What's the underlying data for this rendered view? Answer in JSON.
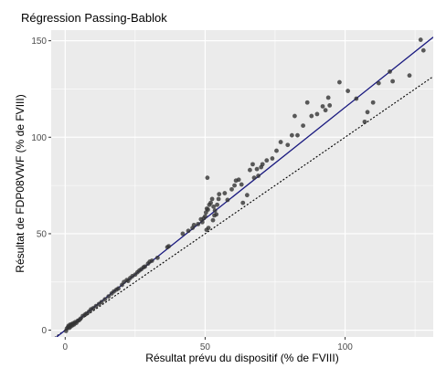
{
  "chart_data": {
    "type": "scatter",
    "title": "Régression Passing-Bablok",
    "xlabel": "Résultat prévu du dispositif (% de FVIII)",
    "ylabel": "Résultat de FDP08VWF (% de FVIII)",
    "xlim": [
      -5,
      131.5
    ],
    "ylim": [
      -3.5,
      155.5
    ],
    "x_ticks": [
      0,
      50,
      100
    ],
    "x_tick_labels": [
      "0",
      "50",
      "100"
    ],
    "y_ticks": [
      0,
      50,
      100,
      150
    ],
    "y_tick_labels": [
      "0",
      "50",
      "100",
      "150"
    ],
    "grid": true,
    "background": "#ebebeb",
    "grid_color": "#ffffff",
    "point_color": "#333333",
    "point_opacity": 0.8,
    "regression_line": {
      "slope": 1.155,
      "intercept": 0.0,
      "color": "#1a1a80",
      "style": "solid"
    },
    "identity_line": {
      "slope": 1.0,
      "intercept": 0.0,
      "color": "#000000",
      "style": "dotted"
    },
    "points": [
      [
        0.3,
        -0.4
      ],
      [
        0.6,
        0.9
      ],
      [
        1.0,
        1.5
      ],
      [
        1.2,
        2.3
      ],
      [
        1.5,
        1.2
      ],
      [
        1.8,
        2.9
      ],
      [
        2.0,
        2.0
      ],
      [
        2.3,
        3.1
      ],
      [
        2.6,
        2.5
      ],
      [
        2.9,
        3.6
      ],
      [
        3.2,
        3.0
      ],
      [
        3.6,
        4.2
      ],
      [
        4.0,
        3.8
      ],
      [
        4.5,
        4.9
      ],
      [
        5.0,
        5.2
      ],
      [
        5.5,
        6.0
      ],
      [
        6.3,
        7.4
      ],
      [
        7.1,
        8.1
      ],
      [
        7.6,
        8.6
      ],
      [
        8.5,
        9.6
      ],
      [
        9.2,
        10.8
      ],
      [
        10.0,
        11.4
      ],
      [
        11.0,
        12.5
      ],
      [
        12.1,
        13.6
      ],
      [
        13.0,
        14.6
      ],
      [
        14.2,
        16.0
      ],
      [
        15.5,
        17.5
      ],
      [
        16.6,
        19.0
      ],
      [
        17.4,
        20.1
      ],
      [
        18.3,
        21.0
      ],
      [
        19.0,
        21.6
      ],
      [
        20.3,
        23.5
      ],
      [
        21.0,
        25.0
      ],
      [
        22.0,
        26.0
      ],
      [
        22.5,
        25.5
      ],
      [
        23.2,
        27.0
      ],
      [
        24.0,
        28.0
      ],
      [
        25.0,
        28.8
      ],
      [
        25.8,
        30.0
      ],
      [
        26.5,
        30.9
      ],
      [
        27.2,
        31.6
      ],
      [
        28.0,
        32.6
      ],
      [
        28.5,
        33.0
      ],
      [
        29.6,
        34.5
      ],
      [
        30.2,
        35.5
      ],
      [
        31.0,
        36.0
      ],
      [
        33.0,
        37.5
      ],
      [
        36.5,
        43.0
      ],
      [
        37.0,
        43.5
      ],
      [
        42.0,
        50.0
      ],
      [
        44.0,
        51.5
      ],
      [
        45.5,
        53.0
      ],
      [
        46.0,
        54.5
      ],
      [
        47.5,
        55.0
      ],
      [
        48.5,
        57.5
      ],
      [
        49.0,
        56.0
      ],
      [
        49.5,
        58.0
      ],
      [
        50.0,
        59.0
      ],
      [
        50.3,
        61.0
      ],
      [
        50.6,
        63.0
      ],
      [
        51.0,
        62.5
      ],
      [
        51.5,
        65.0
      ],
      [
        52.0,
        66.0
      ],
      [
        52.5,
        68.0
      ],
      [
        53.0,
        64.0
      ],
      [
        53.5,
        62.0
      ],
      [
        54.0,
        60.0
      ],
      [
        54.3,
        65.0
      ],
      [
        54.8,
        68.0
      ],
      [
        50.5,
        52.0
      ],
      [
        50.8,
        79.0
      ],
      [
        51.2,
        53.0
      ],
      [
        52.8,
        57.0
      ],
      [
        53.3,
        59.5
      ],
      [
        55.0,
        70.5
      ],
      [
        57.0,
        71.0
      ],
      [
        58.0,
        67.5
      ],
      [
        59.5,
        73.0
      ],
      [
        60.5,
        75.0
      ],
      [
        61.0,
        77.5
      ],
      [
        62.0,
        78.0
      ],
      [
        63.0,
        75.5
      ],
      [
        63.5,
        66.0
      ],
      [
        65.0,
        70.0
      ],
      [
        66.0,
        83.0
      ],
      [
        67.0,
        86.0
      ],
      [
        67.5,
        79.0
      ],
      [
        68.5,
        83.5
      ],
      [
        69.0,
        80.0
      ],
      [
        70.0,
        84.5
      ],
      [
        70.5,
        86.0
      ],
      [
        72.0,
        88.0
      ],
      [
        74.0,
        89.0
      ],
      [
        75.5,
        93.0
      ],
      [
        77.0,
        97.5
      ],
      [
        79.5,
        96.0
      ],
      [
        81.0,
        101.0
      ],
      [
        82.0,
        111.0
      ],
      [
        83.0,
        101.0
      ],
      [
        85.0,
        106.0
      ],
      [
        86.5,
        118.0
      ],
      [
        88.0,
        111.0
      ],
      [
        90.0,
        112.0
      ],
      [
        92.0,
        116.0
      ],
      [
        93.0,
        114.0
      ],
      [
        94.0,
        120.5
      ],
      [
        94.5,
        116.5
      ],
      [
        98.0,
        128.5
      ],
      [
        101.0,
        124.0
      ],
      [
        104.0,
        120.0
      ],
      [
        107.0,
        108.0
      ],
      [
        108.0,
        113.0
      ],
      [
        110.0,
        118.0
      ],
      [
        112.0,
        128.0
      ],
      [
        116.0,
        134.0
      ],
      [
        117.0,
        129.0
      ],
      [
        123.0,
        132.0
      ],
      [
        127.0,
        150.5
      ],
      [
        128.0,
        145.0
      ]
    ]
  }
}
